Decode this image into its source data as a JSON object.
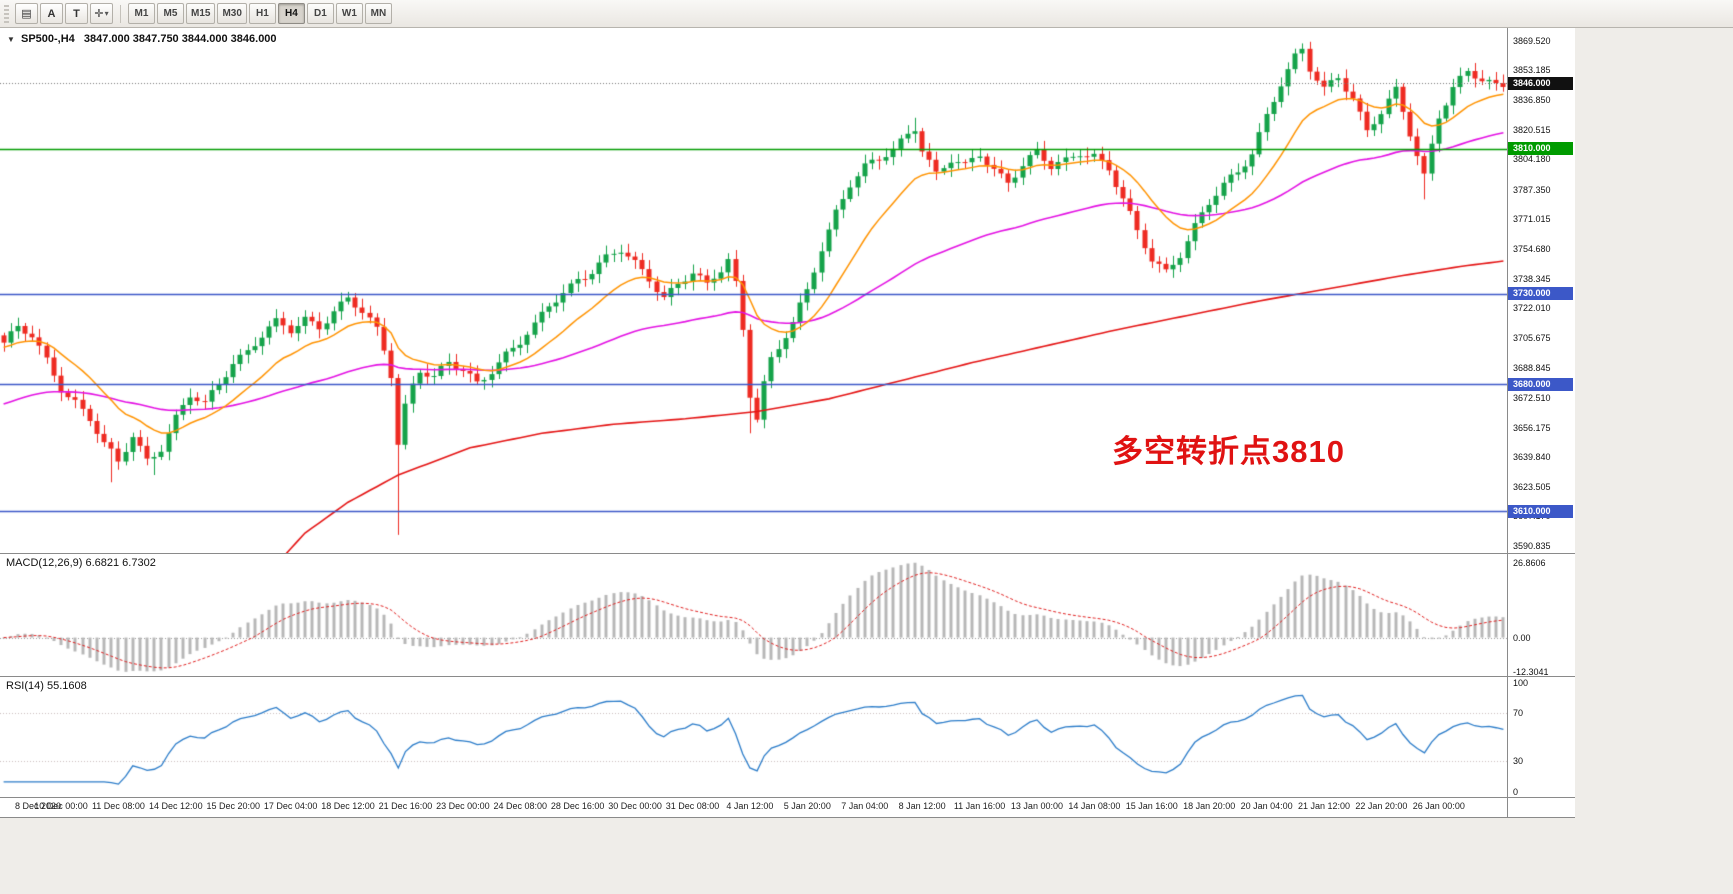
{
  "toolbar": {
    "tools": [
      {
        "name": "indicator-list-icon",
        "glyph": "▤"
      },
      {
        "name": "font-tool-button",
        "glyph": "A"
      },
      {
        "name": "text-label-button",
        "glyph": "T"
      },
      {
        "name": "crosshair-tool-button",
        "glyph": "✛",
        "dropdown": true
      }
    ],
    "timeframes": [
      "M1",
      "M5",
      "M15",
      "M30",
      "H1",
      "H4",
      "D1",
      "W1",
      "MN"
    ],
    "active_timeframe": "H4"
  },
  "chart_header": {
    "collapse_icon": "▼",
    "symbol": "SP500-,H4",
    "ohlc": "3847.000 3847.750 3844.000 3846.000"
  },
  "price_axis": {
    "labels": [
      "3869.520",
      "3853.185",
      "3836.850",
      "3820.515",
      "3804.180",
      "3787.350",
      "3771.015",
      "3754.680",
      "3738.345",
      "3722.010",
      "3705.675",
      "3688.845",
      "3672.510",
      "3656.175",
      "3639.840",
      "3623.505",
      "3607.170",
      "3590.835"
    ],
    "current": {
      "label": "3846.000",
      "value": 3846.0,
      "bg": "#111111"
    }
  },
  "annotation": {
    "text": "多空转折点3810",
    "color": "#e01212"
  },
  "macd_panel": {
    "label": "MACD(12,26,9) 6.6821 6.7302",
    "axis_labels": [
      {
        "text": "26.8606",
        "value": 26.8606
      },
      {
        "text": "0.00",
        "value": 0
      },
      {
        "text": "-12.3041",
        "value": -12.3041
      }
    ]
  },
  "rsi_panel": {
    "label": "RSI(14) 55.1608",
    "axis_labels": [
      {
        "text": "100",
        "value": 100
      },
      {
        "text": "70",
        "value": 70
      },
      {
        "text": "30",
        "value": 30
      },
      {
        "text": "0",
        "value": 0
      }
    ]
  },
  "time_axis": {
    "labels": [
      "8 Dec 2020",
      "10 Dec 00:00",
      "11 Dec 08:00",
      "14 Dec 12:00",
      "15 Dec 20:00",
      "17 Dec 04:00",
      "18 Dec 12:00",
      "21 Dec 16:00",
      "23 Dec 00:00",
      "24 Dec 08:00",
      "28 Dec 16:00",
      "30 Dec 00:00",
      "31 Dec 08:00",
      "4 Jan 12:00",
      "5 Jan 20:00",
      "7 Jan 04:00",
      "8 Jan 12:00",
      "11 Jan 16:00",
      "13 Jan 00:00",
      "14 Jan 08:00",
      "15 Jan 16:00",
      "18 Jan 20:00",
      "20 Jan 04:00",
      "21 Jan 12:00",
      "22 Jan 20:00",
      "26 Jan 00:00"
    ],
    "candles_per_label": 8
  },
  "chart_data": {
    "type": "candlestick",
    "symbol": "SP500",
    "timeframe": "H4",
    "bars": 210,
    "price_range": [
      3587,
      3876.5
    ],
    "up_color": "#15a34a",
    "down_color": "#ee2b22",
    "close_waypoints": [
      [
        0,
        3703
      ],
      [
        2,
        3710
      ],
      [
        4,
        3706
      ],
      [
        6,
        3693
      ],
      [
        8,
        3679
      ],
      [
        10,
        3671
      ],
      [
        12,
        3661
      ],
      [
        14,
        3646
      ],
      [
        16,
        3636
      ],
      [
        18,
        3652
      ],
      [
        20,
        3639
      ],
      [
        22,
        3646
      ],
      [
        24,
        3661
      ],
      [
        26,
        3673
      ],
      [
        28,
        3668
      ],
      [
        30,
        3681
      ],
      [
        32,
        3693
      ],
      [
        34,
        3699
      ],
      [
        36,
        3707
      ],
      [
        38,
        3713
      ],
      [
        40,
        3709
      ],
      [
        42,
        3716
      ],
      [
        44,
        3713
      ],
      [
        46,
        3721
      ],
      [
        48,
        3727
      ],
      [
        50,
        3719
      ],
      [
        52,
        3709
      ],
      [
        53,
        3699
      ],
      [
        54,
        3686
      ],
      [
        55,
        3648
      ],
      [
        56,
        3669
      ],
      [
        57,
        3681
      ],
      [
        58,
        3689
      ],
      [
        60,
        3683
      ],
      [
        62,
        3691
      ],
      [
        64,
        3687
      ],
      [
        66,
        3681
      ],
      [
        68,
        3689
      ],
      [
        70,
        3697
      ],
      [
        72,
        3703
      ],
      [
        74,
        3711
      ],
      [
        76,
        3723
      ],
      [
        78,
        3731
      ],
      [
        80,
        3739
      ],
      [
        82,
        3743
      ],
      [
        84,
        3749
      ],
      [
        86,
        3753
      ],
      [
        88,
        3746
      ],
      [
        90,
        3739
      ],
      [
        92,
        3729
      ],
      [
        94,
        3736
      ],
      [
        96,
        3741
      ],
      [
        98,
        3733
      ],
      [
        100,
        3743
      ],
      [
        101,
        3749
      ],
      [
        102,
        3736
      ],
      [
        103,
        3711
      ],
      [
        104,
        3676
      ],
      [
        105,
        3663
      ],
      [
        106,
        3681
      ],
      [
        107,
        3693
      ],
      [
        108,
        3699
      ],
      [
        110,
        3713
      ],
      [
        112,
        3731
      ],
      [
        114,
        3756
      ],
      [
        116,
        3776
      ],
      [
        118,
        3791
      ],
      [
        120,
        3799
      ],
      [
        122,
        3803
      ],
      [
        124,
        3809
      ],
      [
        126,
        3819
      ],
      [
        127,
        3823
      ],
      [
        128,
        3811
      ],
      [
        130,
        3796
      ],
      [
        132,
        3803
      ],
      [
        134,
        3799
      ],
      [
        136,
        3807
      ],
      [
        138,
        3799
      ],
      [
        140,
        3793
      ],
      [
        142,
        3801
      ],
      [
        144,
        3807
      ],
      [
        146,
        3799
      ],
      [
        148,
        3803
      ],
      [
        150,
        3809
      ],
      [
        152,
        3807
      ],
      [
        154,
        3799
      ],
      [
        156,
        3781
      ],
      [
        158,
        3763
      ],
      [
        160,
        3749
      ],
      [
        162,
        3743
      ],
      [
        164,
        3753
      ],
      [
        166,
        3767
      ],
      [
        168,
        3779
      ],
      [
        170,
        3789
      ],
      [
        172,
        3797
      ],
      [
        174,
        3809
      ],
      [
        176,
        3829
      ],
      [
        178,
        3846
      ],
      [
        180,
        3859
      ],
      [
        181,
        3863
      ],
      [
        182,
        3853
      ],
      [
        184,
        3843
      ],
      [
        186,
        3851
      ],
      [
        188,
        3839
      ],
      [
        190,
        3819
      ],
      [
        192,
        3829
      ],
      [
        194,
        3841
      ],
      [
        196,
        3819
      ],
      [
        198,
        3796
      ],
      [
        199,
        3813
      ],
      [
        200,
        3829
      ],
      [
        202,
        3843
      ],
      [
        204,
        3851
      ],
      [
        206,
        3847
      ],
      [
        208,
        3845
      ],
      [
        209,
        3846
      ]
    ],
    "wick_lows": [
      [
        15,
        3626
      ],
      [
        21,
        3630
      ],
      [
        55,
        3597
      ],
      [
        104,
        3653
      ],
      [
        198,
        3782
      ]
    ],
    "wick_highs": [
      [
        48,
        3731
      ],
      [
        86,
        3757
      ],
      [
        127,
        3827
      ],
      [
        181,
        3868
      ]
    ],
    "horizontal_lines": [
      {
        "price": 3810,
        "label": "3810.000",
        "color": "#009b00"
      },
      {
        "price": 3730,
        "label": "3730.000",
        "color": "#3c58c8"
      },
      {
        "price": 3680,
        "label": "3680.000",
        "color": "#3c58c8"
      },
      {
        "price": 3610,
        "label": "3610.000",
        "color": "#3c58c8"
      }
    ],
    "current_price": 3846.0,
    "moving_averages": {
      "fast": {
        "period": 14,
        "color": "#ff9300",
        "seed": 3700
      },
      "medium": {
        "period": 60,
        "color": "#e312e3",
        "seed": 3668
      },
      "long": {
        "color": "#e41414",
        "waypoints": [
          [
            28,
            3530
          ],
          [
            36,
            3572
          ],
          [
            42,
            3598
          ],
          [
            48,
            3615
          ],
          [
            55,
            3630
          ],
          [
            65,
            3645
          ],
          [
            75,
            3653
          ],
          [
            85,
            3658
          ],
          [
            95,
            3661
          ],
          [
            105,
            3665
          ],
          [
            115,
            3672
          ],
          [
            125,
            3682
          ],
          [
            135,
            3692
          ],
          [
            145,
            3701
          ],
          [
            155,
            3710
          ],
          [
            165,
            3718
          ],
          [
            175,
            3726
          ],
          [
            185,
            3733
          ],
          [
            195,
            3740
          ],
          [
            203,
            3745
          ],
          [
            209,
            3748
          ]
        ]
      }
    },
    "macd": {
      "fast": 12,
      "slow": 26,
      "signal": 9,
      "max_value": 26.8606,
      "min_value": -12.3041,
      "range": [
        -13.8,
        30
      ],
      "histogram_color": "#b8b8b8",
      "signal_color": "#e02020"
    },
    "rsi": {
      "period": 14,
      "color": "#2b7cc9",
      "levels": [
        70,
        30
      ],
      "range": [
        0,
        100
      ]
    }
  }
}
